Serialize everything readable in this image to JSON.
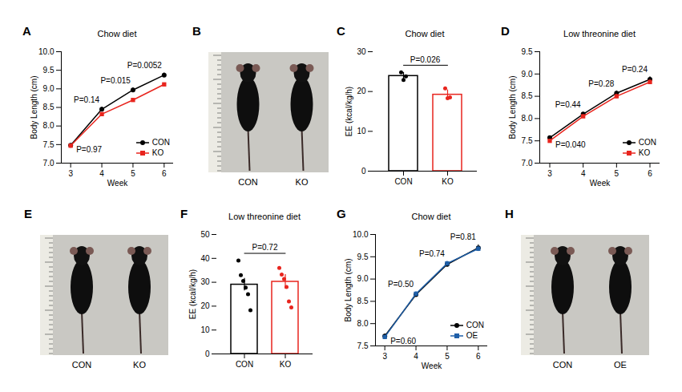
{
  "chart_data": [
    {
      "panel": "A",
      "type": "line",
      "title": "Chow diet",
      "x_label": "Week",
      "y_label": "Body Length (cm)",
      "x": [
        3,
        4,
        5,
        6
      ],
      "series": [
        {
          "name": "CON",
          "color": "#000000",
          "marker": "circle",
          "values": [
            7.48,
            8.45,
            8.97,
            9.37
          ],
          "errors": [
            0.04,
            0.06,
            0.06,
            0.06
          ]
        },
        {
          "name": "KO",
          "color": "#e8251e",
          "marker": "square",
          "values": [
            7.47,
            8.32,
            8.7,
            9.12
          ],
          "errors": [
            0.03,
            0.04,
            0.04,
            0.04
          ]
        }
      ],
      "p_values": [
        "P=0.97",
        "P=0.14",
        "P=0.015",
        "P=0.0052"
      ],
      "xlim": [
        2.7,
        6.3
      ],
      "xticks": [
        3,
        4,
        5,
        6
      ],
      "ylim": [
        7,
        10
      ],
      "yticks": [
        {
          "value": 7,
          "label": "7.0"
        },
        {
          "value": 7.5,
          "label": "7.5"
        },
        {
          "value": 8,
          "label": "8.0"
        },
        {
          "value": 8.5,
          "label": "8.5"
        },
        {
          "value": 9,
          "label": "9.0"
        },
        {
          "value": 9.5,
          "label": "9.5"
        },
        {
          "value": 10,
          "label": "10.0"
        }
      ],
      "legend": "lower right",
      "grid": false
    },
    {
      "panel": "C",
      "type": "bar",
      "title": "Chow diet",
      "y_label": "EE (kcal/kg/h)",
      "categories": [
        "CON",
        "KO"
      ],
      "values": [
        23.9,
        19.2
      ],
      "errors": [
        0.9,
        1.2
      ],
      "points": [
        [
          24.8,
          22.9,
          23.8
        ],
        [
          20.8,
          18.3,
          18.5
        ]
      ],
      "colors": [
        "#000000",
        "#e8251e"
      ],
      "p_value": "P=0.026",
      "ylim": [
        0,
        30
      ],
      "yticks": [
        0,
        10,
        20,
        30
      ],
      "grid": false
    },
    {
      "panel": "D",
      "type": "line",
      "title": "Low threonine diet",
      "x_label": "Week",
      "y_label": "Body Length (cm)",
      "x": [
        3,
        4,
        5,
        6
      ],
      "series": [
        {
          "name": "CON",
          "color": "#000000",
          "marker": "circle",
          "values": [
            7.57,
            8.1,
            8.57,
            8.88
          ],
          "errors": [
            0.03,
            0.04,
            0.05,
            0.06
          ]
        },
        {
          "name": "KO",
          "color": "#e8251e",
          "marker": "square",
          "values": [
            7.5,
            8.05,
            8.5,
            8.82
          ],
          "errors": [
            0.03,
            0.04,
            0.05,
            0.05
          ]
        }
      ],
      "p_values": [
        "P=0.040",
        "P=0.44",
        "P=0.28",
        "P=0.24"
      ],
      "xlim": [
        2.7,
        6.3
      ],
      "xticks": [
        3,
        4,
        5,
        6
      ],
      "ylim": [
        7,
        9.5
      ],
      "yticks": [
        {
          "value": 7,
          "label": "7.0"
        },
        {
          "value": 7.5,
          "label": "7.5"
        },
        {
          "value": 8,
          "label": "8.0"
        },
        {
          "value": 8.5,
          "label": "8.5"
        },
        {
          "value": 9,
          "label": "9.0"
        },
        {
          "value": 9.5,
          "label": "9.5"
        }
      ],
      "legend": "lower right",
      "grid": false
    },
    {
      "panel": "F",
      "type": "bar",
      "title": "Low threonine diet",
      "y_label": "EE (kcal/kg/h)",
      "categories": [
        "CON",
        "KO"
      ],
      "values": [
        29.0,
        30.2
      ],
      "errors": [
        2.6,
        3.0
      ],
      "points": [
        [
          39.1,
          33.0,
          30.5,
          27.8,
          25.0,
          18.3
        ],
        [
          36.0,
          33.2,
          31.4,
          28.0,
          22.0,
          19.5
        ]
      ],
      "colors": [
        "#000000",
        "#e8251e"
      ],
      "p_value": "P=0.72",
      "ylim": [
        0,
        50
      ],
      "yticks": [
        0,
        10,
        20,
        30,
        40,
        50
      ],
      "grid": false
    },
    {
      "panel": "G",
      "type": "line",
      "title": "Chow diet",
      "x_label": "Week",
      "y_label": "Body Length (cm)",
      "x": [
        3,
        4,
        5,
        6
      ],
      "series": [
        {
          "name": "CON",
          "color": "#000000",
          "marker": "circle",
          "values": [
            7.72,
            8.65,
            9.33,
            9.7
          ],
          "errors": [
            0.05,
            0.05,
            0.06,
            0.07
          ]
        },
        {
          "name": "OE",
          "color": "#1f5fa8",
          "marker": "square",
          "values": [
            7.7,
            8.67,
            9.35,
            9.68
          ],
          "errors": [
            0.04,
            0.05,
            0.05,
            0.06
          ]
        }
      ],
      "p_values": [
        "P=0.60",
        "P=0.50",
        "P=0.74",
        "P=0.81"
      ],
      "xlim": [
        2.7,
        6.3
      ],
      "xticks": [
        3,
        4,
        5,
        6
      ],
      "ylim": [
        7.5,
        10
      ],
      "yticks": [
        {
          "value": 7.5,
          "label": "7.5"
        },
        {
          "value": 8,
          "label": "8.0"
        },
        {
          "value": 8.5,
          "label": "8.5"
        },
        {
          "value": 9,
          "label": "9.0"
        },
        {
          "value": 9.5,
          "label": "9.5"
        },
        {
          "value": 10,
          "label": "10.0"
        }
      ],
      "legend": "lower right",
      "grid": false
    }
  ],
  "photos": [
    {
      "panel": "B",
      "labels": [
        "CON",
        "KO"
      ]
    },
    {
      "panel": "E",
      "labels": [
        "CON",
        "KO"
      ]
    },
    {
      "panel": "H",
      "labels": [
        "CON",
        "OE"
      ]
    }
  ]
}
